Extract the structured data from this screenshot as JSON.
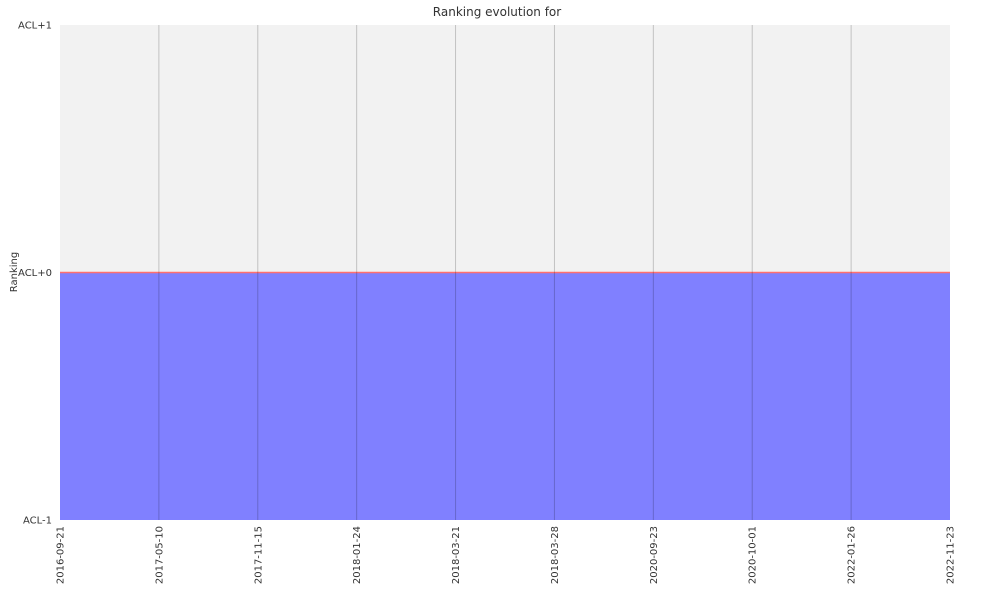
{
  "chart_data": {
    "type": "area",
    "title": "Ranking evolution for",
    "xlabel": "",
    "ylabel": "Ranking",
    "x": [
      "2016-09-21",
      "2017-05-10",
      "2017-11-15",
      "2018-01-24",
      "2018-03-21",
      "2018-03-28",
      "2020-09-23",
      "2020-10-01",
      "2022-01-26",
      "2022-11-23"
    ],
    "y_ticks": [
      "ACL-1",
      "ACL+0",
      "ACL+1"
    ],
    "ylim": [
      -1,
      1
    ],
    "series": [
      {
        "values": [
          0,
          0,
          0,
          0,
          0,
          0,
          0,
          0,
          0,
          0
        ],
        "color": "#8080ff",
        "line_color": "#ff6f6f"
      }
    ],
    "grid": true,
    "plot_background": "#f2f2f2"
  }
}
